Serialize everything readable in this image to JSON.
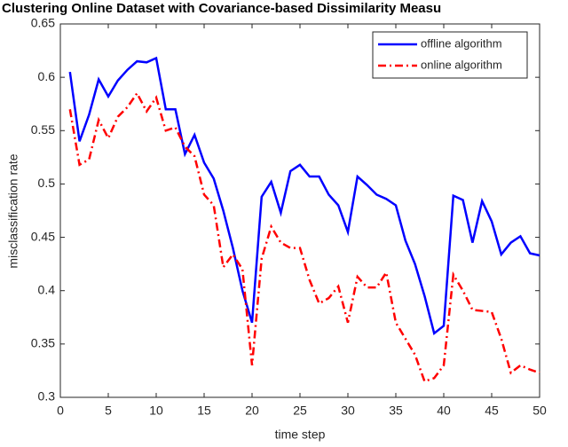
{
  "chart_data": {
    "type": "line",
    "title": "Clustering Online Dataset with Covariance-based Dissimilarity Measu",
    "xlabel": "time step",
    "ylabel": "misclassification rate",
    "x": [
      1,
      2,
      3,
      4,
      5,
      6,
      7,
      8,
      9,
      10,
      11,
      12,
      13,
      14,
      15,
      16,
      17,
      18,
      19,
      20,
      21,
      22,
      23,
      24,
      25,
      26,
      27,
      28,
      29,
      30,
      31,
      32,
      33,
      34,
      35,
      36,
      37,
      38,
      39,
      40,
      41,
      42,
      43,
      44,
      45,
      46,
      47,
      48,
      49,
      50
    ],
    "series": [
      {
        "name": "offline algorithm",
        "color": "#0000ff",
        "linestyle": "solid",
        "values": [
          0.605,
          0.54,
          0.565,
          0.598,
          0.582,
          0.597,
          0.607,
          0.615,
          0.614,
          0.618,
          0.57,
          0.57,
          0.528,
          0.546,
          0.52,
          0.505,
          0.475,
          0.44,
          0.4,
          0.37,
          0.488,
          0.502,
          0.473,
          0.512,
          0.518,
          0.507,
          0.507,
          0.49,
          0.48,
          0.455,
          0.507,
          0.499,
          0.49,
          0.486,
          0.48,
          0.447,
          0.425,
          0.395,
          0.36,
          0.367,
          0.489,
          0.485,
          0.445,
          0.484,
          0.465,
          0.434,
          0.445,
          0.451,
          0.435,
          0.433
        ]
      },
      {
        "name": "online algorithm",
        "color": "#ff0000",
        "linestyle": "dashdot",
        "values": [
          0.57,
          0.518,
          0.523,
          0.56,
          0.543,
          0.563,
          0.572,
          0.585,
          0.568,
          0.581,
          0.55,
          0.553,
          0.535,
          0.526,
          0.49,
          0.48,
          0.422,
          0.434,
          0.42,
          0.33,
          0.43,
          0.46,
          0.445,
          0.44,
          0.44,
          0.41,
          0.388,
          0.393,
          0.404,
          0.37,
          0.413,
          0.403,
          0.403,
          0.417,
          0.37,
          0.355,
          0.34,
          0.315,
          0.318,
          0.33,
          0.415,
          0.4,
          0.382,
          0.381,
          0.38,
          0.355,
          0.323,
          0.33,
          0.326,
          0.323
        ]
      }
    ],
    "xlim": [
      0,
      50
    ],
    "xticks": [
      0,
      5,
      10,
      15,
      20,
      25,
      30,
      35,
      40,
      45,
      50
    ],
    "ylim": [
      0.3,
      0.65
    ],
    "yticks": [
      0.3,
      0.35,
      0.4,
      0.45,
      0.5,
      0.55,
      0.6,
      0.65
    ],
    "grid": false,
    "legend": "top-right"
  }
}
